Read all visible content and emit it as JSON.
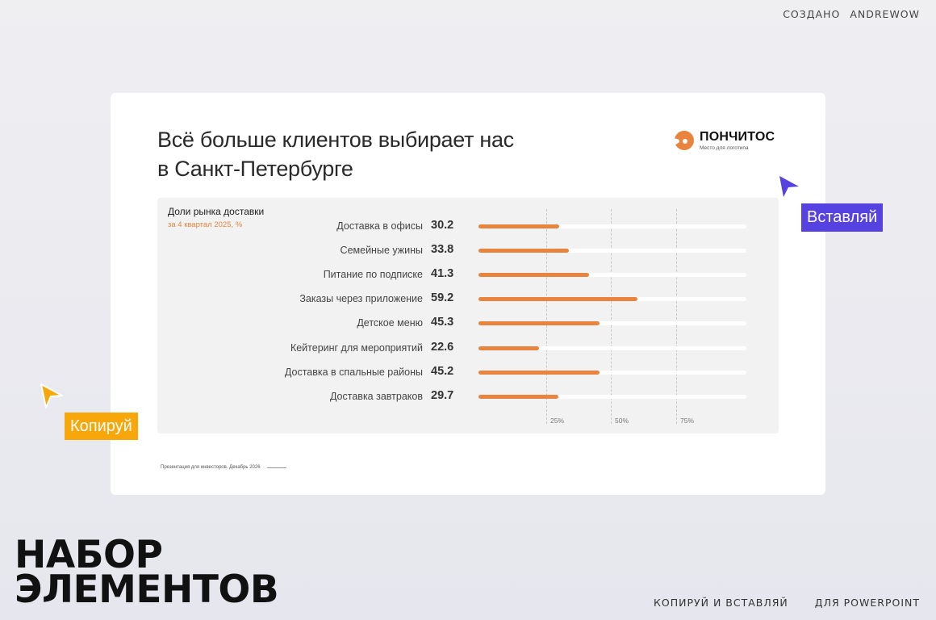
{
  "credit": {
    "prefix": "СОЗДАНО",
    "author": "ANDREWOW"
  },
  "slide": {
    "title": "Всё больше клиентов выбирает нас в Санкт-Петербурге",
    "logo": {
      "name": "ПОНЧИТОС",
      "subtitle": "Место для логотипа",
      "color": "#e8843e"
    },
    "footer": "Презентация для инвесторов. Декабрь 2026"
  },
  "chart_data": {
    "type": "bar",
    "orientation": "horizontal",
    "title": "Доли рынка доставки",
    "subtitle": "за 4 квартал 2025, %",
    "categories": [
      "Доставка в офисы",
      "Семейные ужины",
      "Питание по подписке",
      "Заказы через приложение",
      "Детское меню",
      "Кейтеринг для мероприятий",
      "Доставка в спальные районы",
      "Доставка завтраков"
    ],
    "values": [
      30.2,
      33.8,
      41.3,
      59.2,
      45.3,
      22.6,
      45.2,
      29.7
    ],
    "value_labels": [
      "30.2",
      "33.8",
      "41.3",
      "59.2",
      "45.3",
      "22.6",
      "45.2",
      "29.7"
    ],
    "xlabel": "",
    "ylabel": "",
    "xlim": [
      0,
      100
    ],
    "x_ticks": [
      "25%",
      "50%",
      "75%"
    ],
    "grid": true,
    "legend": null,
    "bar_color": "#e8843e",
    "track_color": "#ffffff"
  },
  "annotations": {
    "paste_label": "Вставляй",
    "paste_color": "#5542e0",
    "copy_label": "Копируй",
    "copy_color": "#f7a70a"
  },
  "bottom": {
    "title_line1": "НАБОР",
    "title_line2": "ЭЛЕМЕНТОВ",
    "tagline1": "КОПИРУЙ И ВСТАВЛЯЙ",
    "tagline2": "ДЛЯ POWERPOINT"
  }
}
